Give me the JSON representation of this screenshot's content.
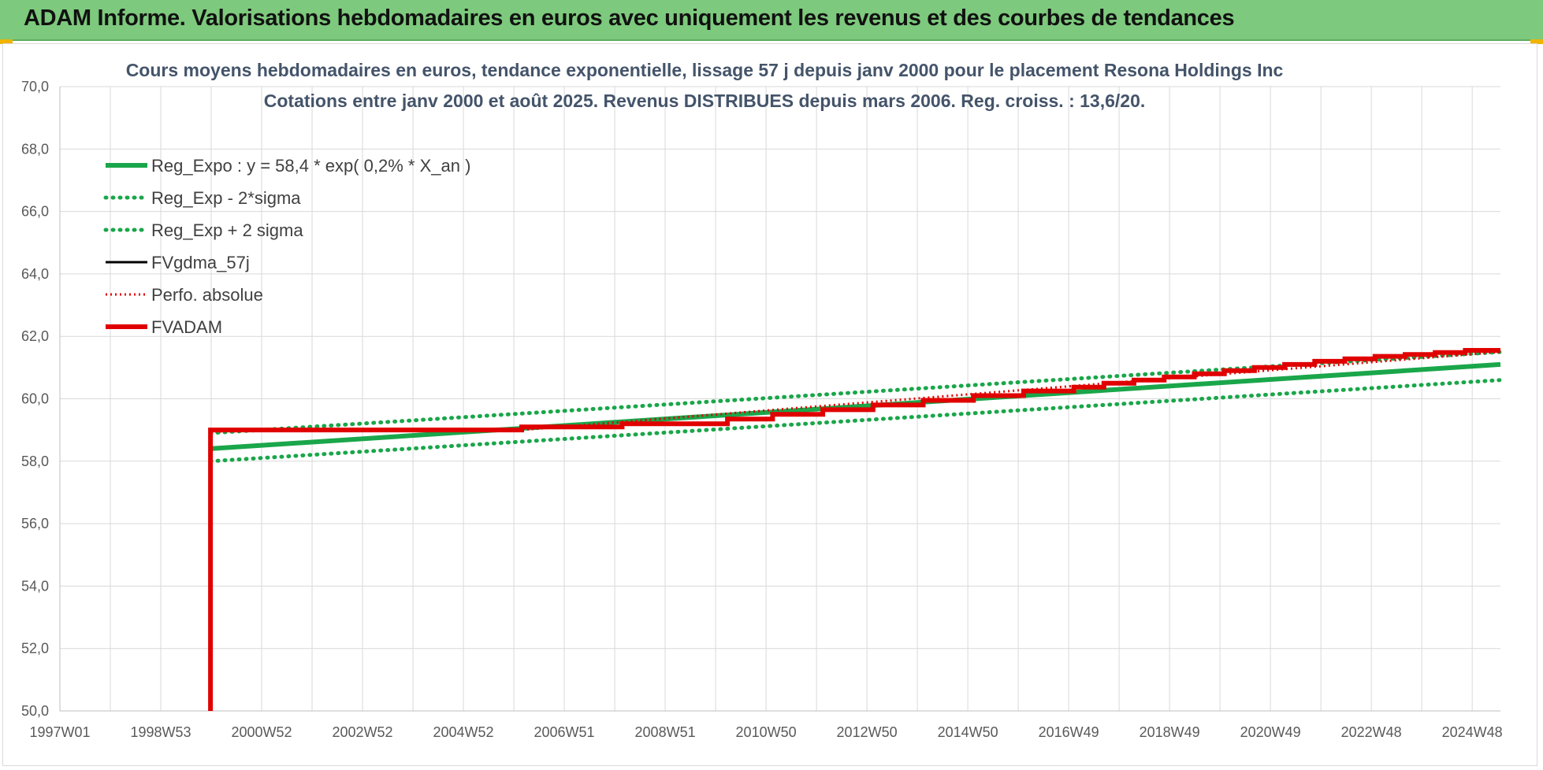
{
  "banner": {
    "title": "ADAM Informe. Valorisations hebdomadaires en euros avec uniquement les revenus et des courbes de tendances"
  },
  "colors": {
    "banner_bg": "#7dc97d",
    "reg_green": "#1aa64a",
    "band_green": "#1aa64a",
    "fvgdma_black": "#000000",
    "perf_red": "#e00000",
    "fvadam_red": "#e00000",
    "grid": "#d9d9d9"
  },
  "chart_data": {
    "type": "line",
    "title_line1": "Cours moyens hebdomadaires en euros, tendance exponentielle, lissage 57 j depuis janv 2000 pour le placement Resona Holdings Inc",
    "title_line2": "Cotations entre janv 2000 et août 2025. Revenus DISTRIBUES depuis mars 2006. Reg. croiss. : 13,6/20.",
    "x_tick_labels": [
      "1997W01",
      "1998W53",
      "2000W52",
      "2002W52",
      "2004W52",
      "2006W51",
      "2008W51",
      "2010W50",
      "2012W50",
      "2014W50",
      "2016W49",
      "2018W49",
      "2020W49",
      "2022W48",
      "2024W48"
    ],
    "x_range_years": [
      1997.0,
      2025.7
    ],
    "y_ticks": [
      "50,0",
      "52,0",
      "54,0",
      "56,0",
      "58,0",
      "60,0",
      "62,0",
      "64,0",
      "66,0",
      "68,0",
      "70,0"
    ],
    "ylim": [
      50,
      70
    ],
    "grid": true,
    "legend_position": "top-left",
    "legend": [
      {
        "label": "Reg_Expo : y = 58,4 * exp( 0,2% *  X_an )",
        "style": "solid-thick",
        "color": "#1aa64a"
      },
      {
        "label": "Reg_Exp - 2*sigma",
        "style": "dotted",
        "color": "#1aa64a"
      },
      {
        "label": "Reg_Exp + 2 sigma",
        "style": "dotted",
        "color": "#1aa64a"
      },
      {
        "label": "FVgdma_57j",
        "style": "solid",
        "color": "#000000"
      },
      {
        "label": "Perfo. absolue",
        "style": "dotted-thin",
        "color": "#e00000"
      },
      {
        "label": "FVADAM",
        "style": "solid-thick",
        "color": "#e00000"
      }
    ],
    "series": [
      {
        "name": "Reg_Expo : y = 58,4 * exp( 0,2% *  X_an )",
        "x": [
          2000.0,
          2025.7
        ],
        "y": [
          58.4,
          61.1
        ]
      },
      {
        "name": "Reg_Exp - 2*sigma",
        "x": [
          2000.0,
          2025.7
        ],
        "y": [
          58.0,
          60.6
        ]
      },
      {
        "name": "Reg_Exp + 2 sigma",
        "x": [
          2000.0,
          2025.7
        ],
        "y": [
          58.9,
          61.5
        ]
      },
      {
        "name": "FVADAM",
        "x": [
          2000.0,
          2000.0,
          2006.2,
          2006.2,
          2008.2,
          2008.2,
          2010.3,
          2010.3,
          2011.2,
          2011.2,
          2012.2,
          2012.2,
          2013.2,
          2013.2,
          2014.2,
          2014.2,
          2015.2,
          2015.2,
          2016.2,
          2016.2,
          2017.2,
          2017.2,
          2017.8,
          2017.8,
          2018.4,
          2018.4,
          2019.0,
          2019.0,
          2019.6,
          2019.6,
          2020.2,
          2020.2,
          2020.8,
          2020.8,
          2021.4,
          2021.4,
          2022.0,
          2022.0,
          2022.6,
          2022.6,
          2023.2,
          2023.2,
          2023.8,
          2023.8,
          2024.4,
          2024.4,
          2025.0,
          2025.0,
          2025.7
        ],
        "y": [
          50.0,
          59.0,
          59.0,
          59.1,
          59.1,
          59.2,
          59.2,
          59.35,
          59.35,
          59.5,
          59.5,
          59.65,
          59.65,
          59.8,
          59.8,
          59.95,
          59.95,
          60.1,
          60.1,
          60.25,
          60.25,
          60.37,
          60.37,
          60.5,
          60.5,
          60.6,
          60.6,
          60.7,
          60.7,
          60.8,
          60.8,
          60.9,
          60.9,
          61.0,
          61.0,
          61.1,
          61.1,
          61.2,
          61.2,
          61.28,
          61.28,
          61.36,
          61.36,
          61.42,
          61.42,
          61.48,
          61.48,
          61.55,
          61.55
        ]
      },
      {
        "name": "Perfo. absolue",
        "x": [
          2000.0,
          2002.5,
          2006.2,
          2025.7
        ],
        "y": [
          58.95,
          59.0,
          59.0,
          61.5
        ]
      }
    ]
  }
}
